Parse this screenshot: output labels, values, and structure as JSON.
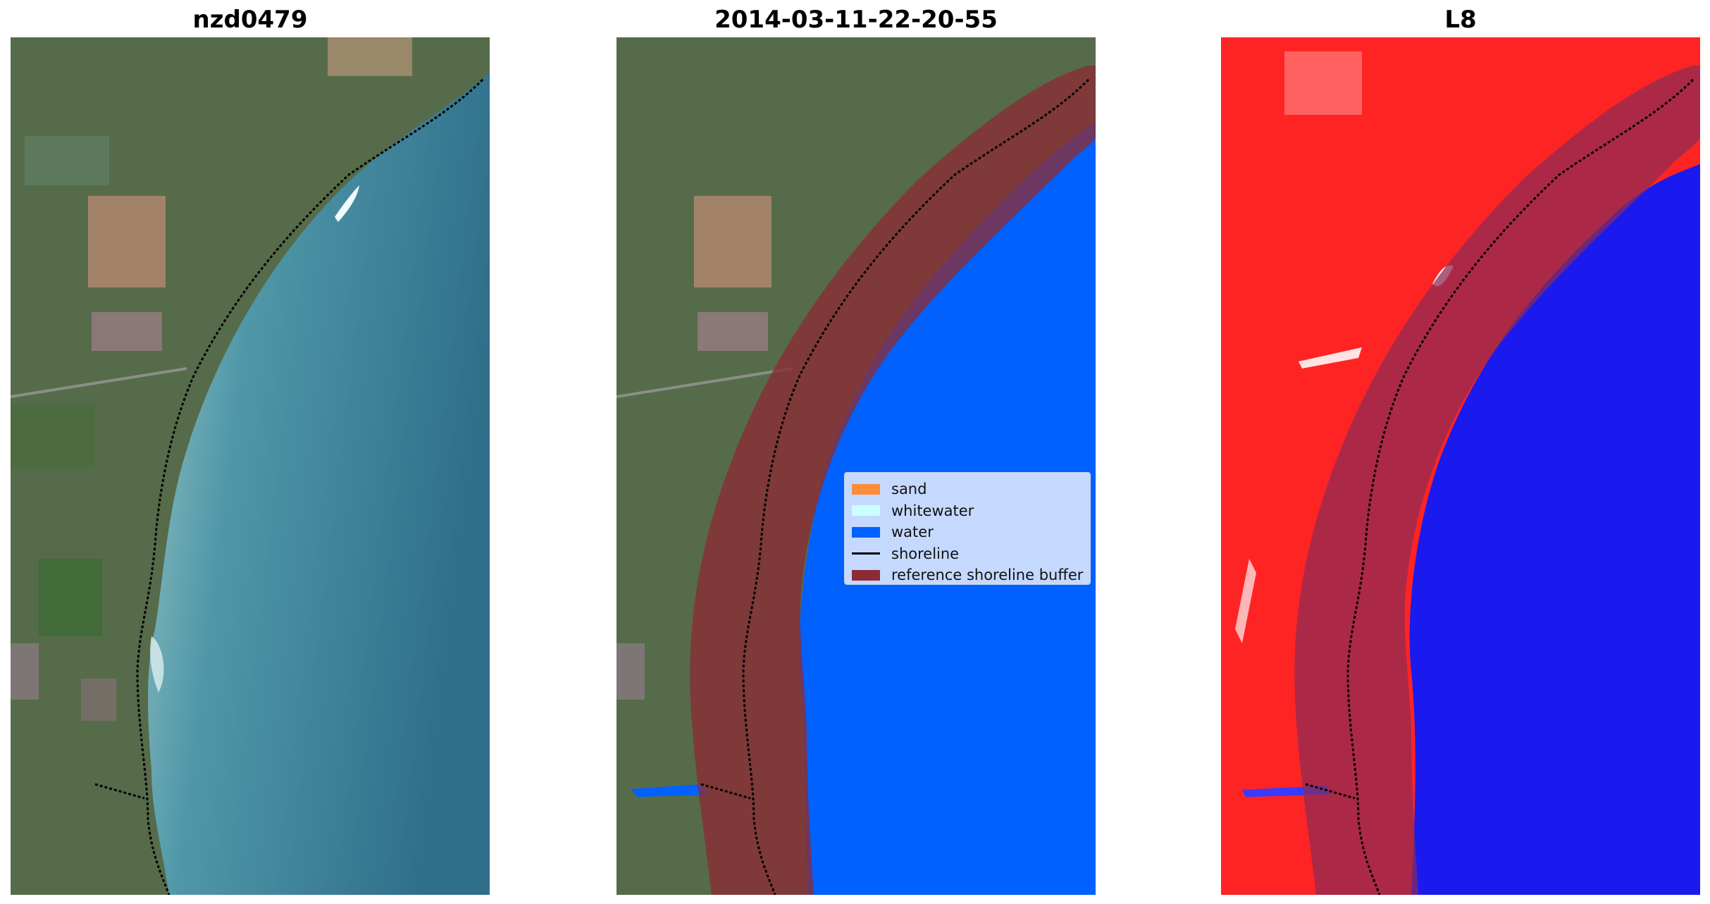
{
  "panels": [
    {
      "title": "nzd0479",
      "kind": "rgb-satellite-image"
    },
    {
      "title": "2014-03-11-22-20-55",
      "kind": "classified-image"
    },
    {
      "title": "L8",
      "kind": "water-index-image"
    }
  ],
  "legend": {
    "items": [
      {
        "label": "sand",
        "color": "#ff8c3a",
        "type": "patch"
      },
      {
        "label": "whitewater",
        "color": "#ccffff",
        "type": "patch"
      },
      {
        "label": "water",
        "color": "#0061ff",
        "type": "patch"
      },
      {
        "label": "shoreline",
        "color": "#000000",
        "type": "line"
      },
      {
        "label": "reference shoreline buffer",
        "color": "#8b2b35",
        "type": "patch"
      }
    ]
  },
  "colors": {
    "land": "#566b4a",
    "sea": "#3a7f93",
    "water_class": "#0061ff",
    "buffer": "#8b2b35",
    "index_land": "#ff2222",
    "index_water": "#1a1aee"
  }
}
